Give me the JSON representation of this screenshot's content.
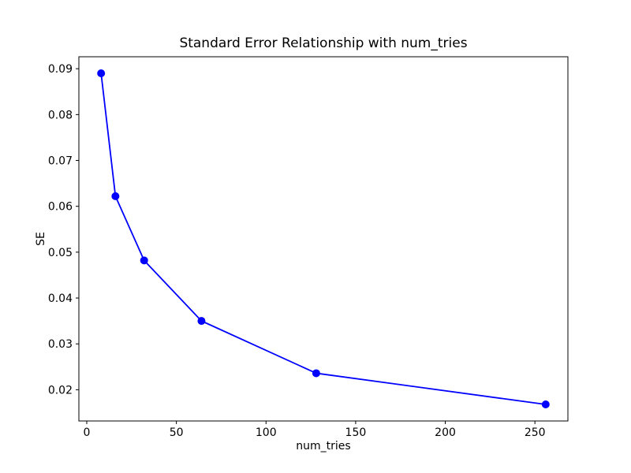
{
  "chart_data": {
    "type": "line",
    "title": "Standard Error Relationship with num_tries",
    "xlabel": "num_tries",
    "ylabel": "SE",
    "x": [
      8,
      16,
      32,
      64,
      128,
      256
    ],
    "y": [
      0.089,
      0.0622,
      0.0482,
      0.035,
      0.0236,
      0.0168
    ],
    "series": [
      {
        "name": "SE",
        "values": [
          0.089,
          0.0622,
          0.0482,
          0.035,
          0.0236,
          0.0168
        ]
      }
    ],
    "xlim": [
      -4.4,
      268.4
    ],
    "ylim": [
      0.01319,
      0.09261
    ],
    "x_ticks": [
      0,
      50,
      100,
      150,
      200,
      250
    ],
    "x_tick_labels": [
      "0",
      "50",
      "100",
      "150",
      "200",
      "250"
    ],
    "y_ticks": [
      0.02,
      0.03,
      0.04,
      0.05,
      0.06,
      0.07,
      0.08,
      0.09
    ],
    "y_tick_labels": [
      "0.02",
      "0.03",
      "0.04",
      "0.05",
      "0.06",
      "0.07",
      "0.08",
      "0.09"
    ],
    "line_color": "#0000ff",
    "marker": "circle",
    "marker_color": "#0000ff",
    "spine_color": "#000000",
    "background": "#ffffff",
    "grid": false,
    "legend": "none"
  }
}
